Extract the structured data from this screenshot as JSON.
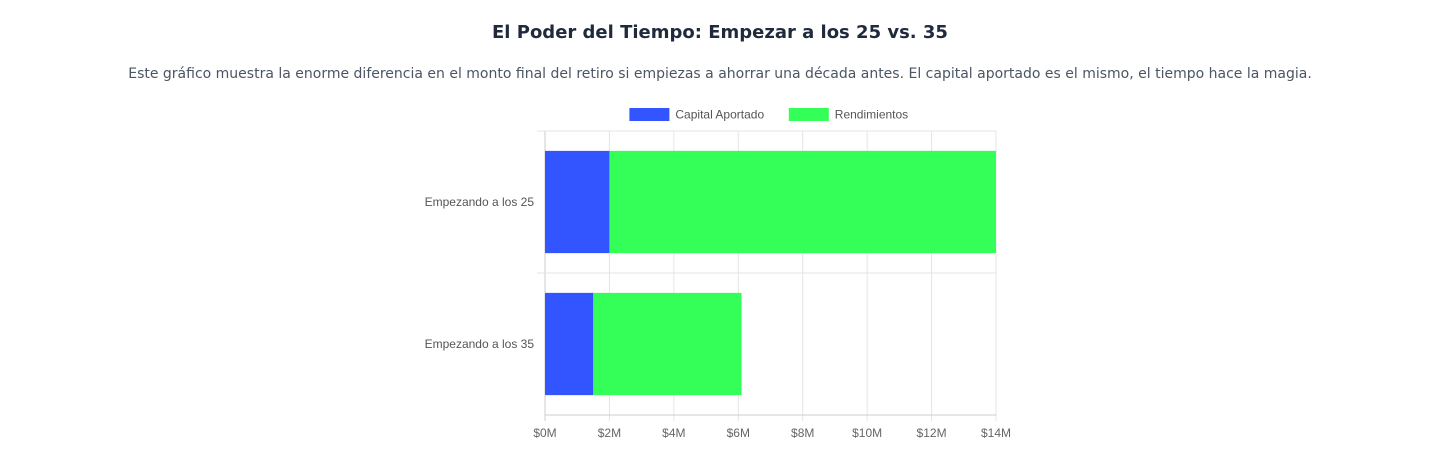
{
  "header": {
    "title": "El Poder del Tiempo: Empezar a los 25 vs. 35",
    "subtitle": "Este gráfico muestra la enorme diferencia en el monto final del retiro si empiezas a ahorrar una década antes. El capital aportado es el mismo, el tiempo hace la magia."
  },
  "chart_data": {
    "type": "bar",
    "orientation": "horizontal",
    "stacked": true,
    "categories": [
      "Empezando a los 25",
      "Empezando a los 35"
    ],
    "series": [
      {
        "name": "Capital Aportado",
        "color": "#3355ff",
        "values": [
          2.0,
          1.5
        ]
      },
      {
        "name": "Rendimientos",
        "color": "#33ff58",
        "values": [
          12.0,
          4.6
        ]
      }
    ],
    "xlim": [
      0,
      14
    ],
    "x_ticks": [
      0,
      2,
      4,
      6,
      8,
      10,
      12,
      14
    ],
    "x_tick_labels": [
      "$0M",
      "$2M",
      "$4M",
      "$6M",
      "$8M",
      "$10M",
      "$12M",
      "$14M"
    ],
    "grid": true,
    "legend_position": "top"
  }
}
